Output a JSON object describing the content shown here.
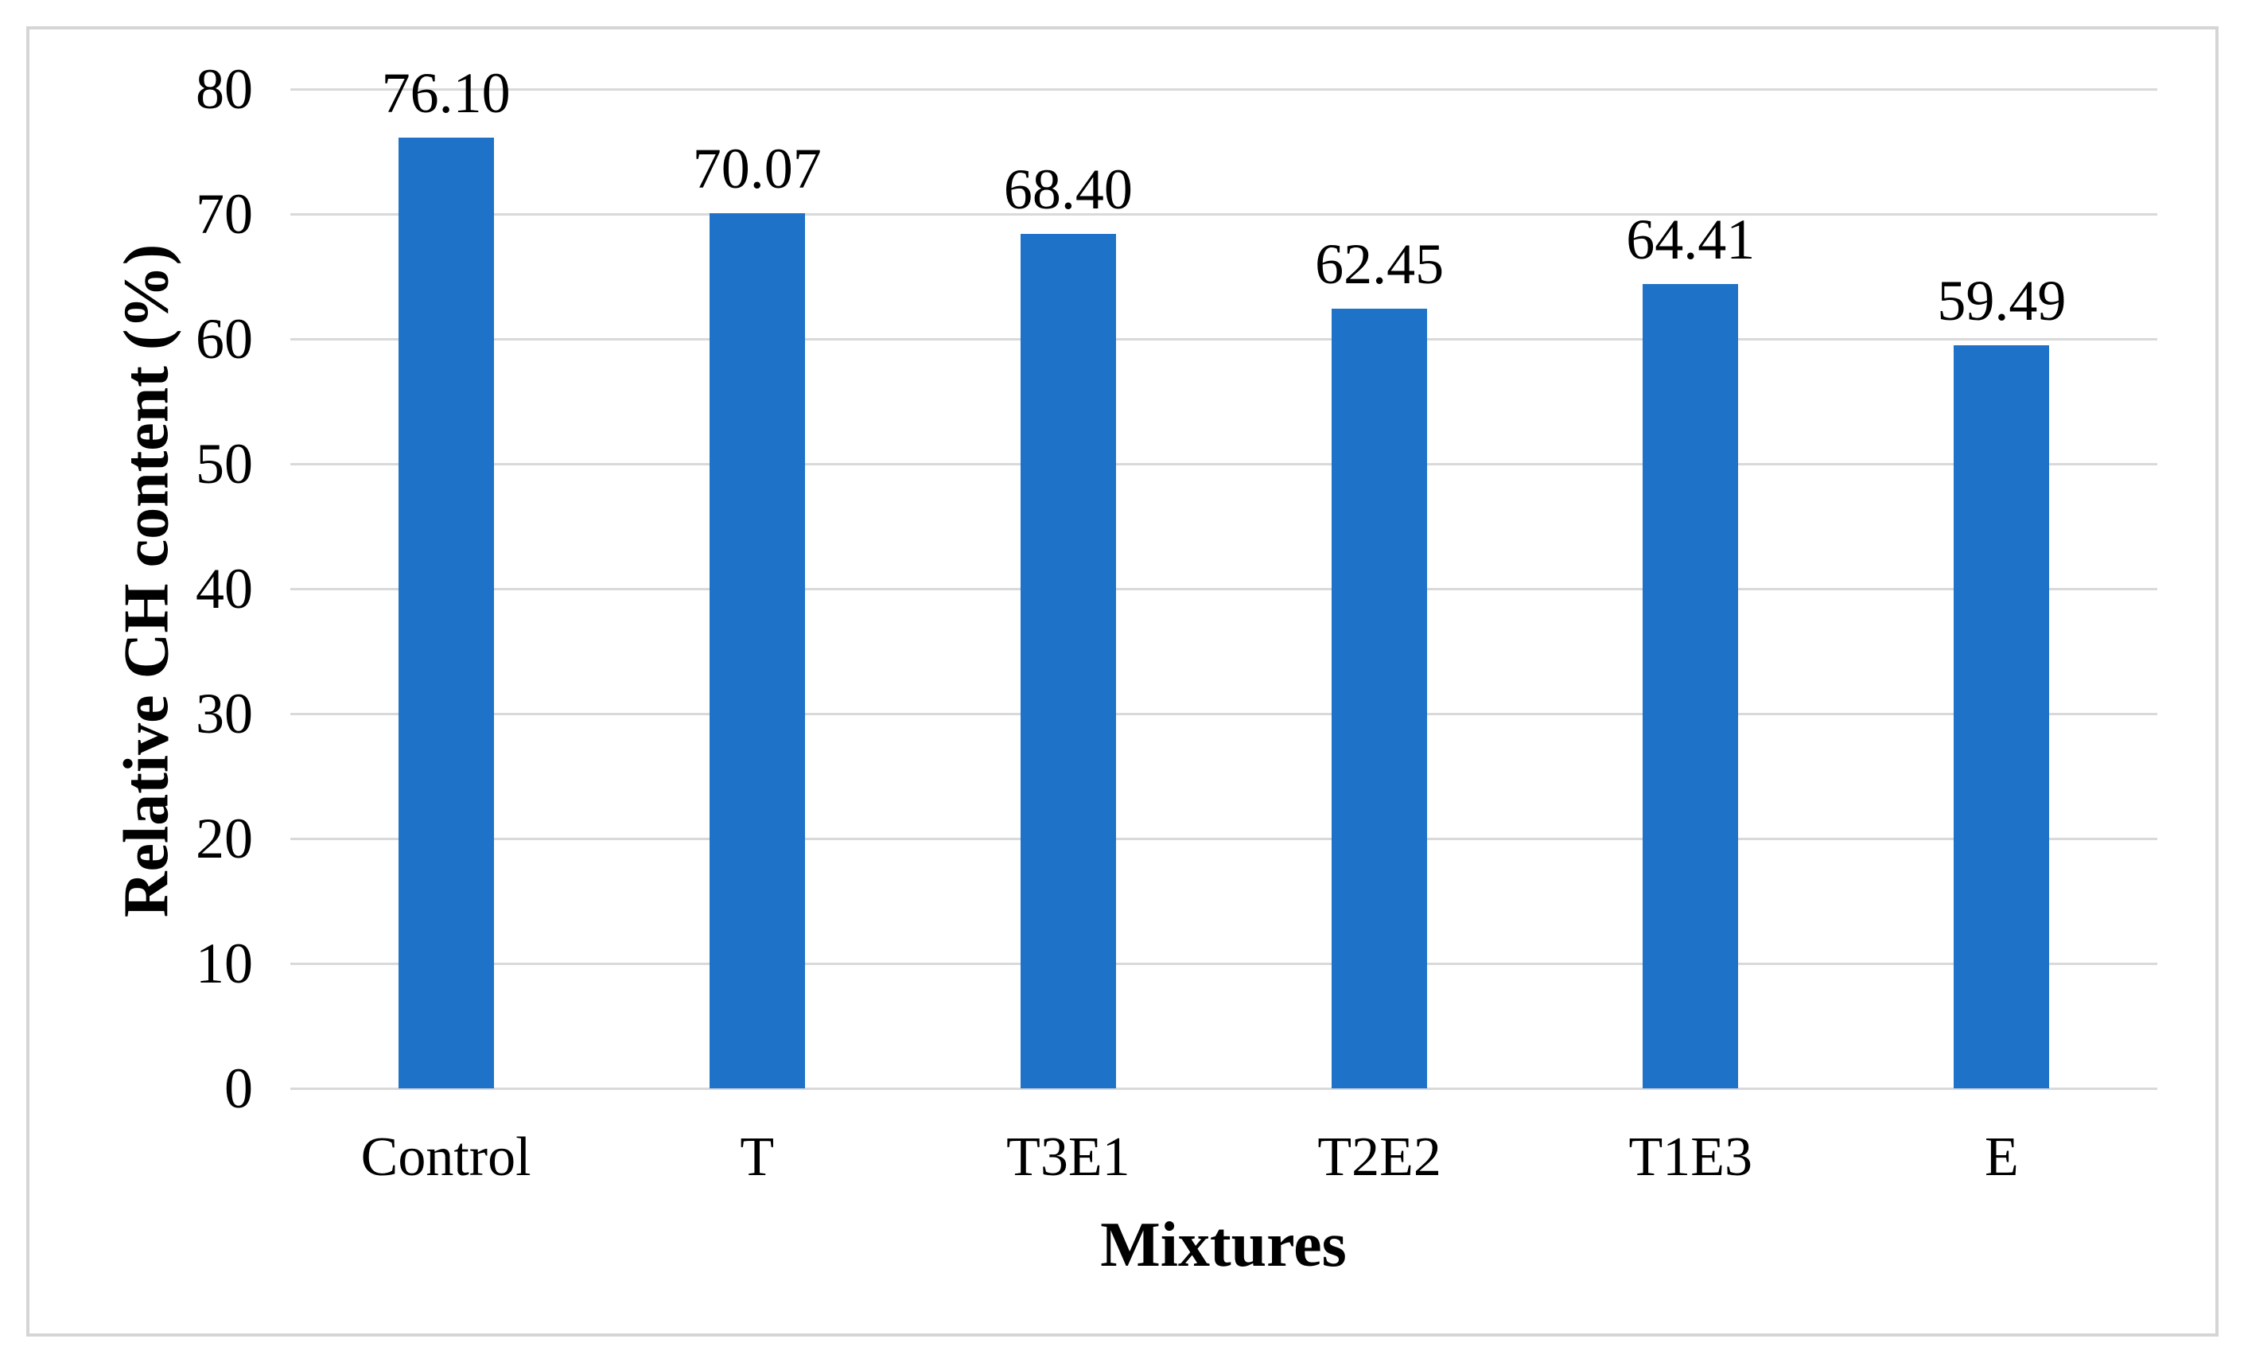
{
  "figure": {
    "background": "#FFFFFF",
    "frame_color": "#D5D5D5"
  },
  "chart_data": {
    "type": "bar",
    "title": "",
    "categories": [
      "Control",
      "T",
      "T3E1",
      "T2E2",
      "T1E3",
      "E"
    ],
    "values": [
      76.1,
      70.07,
      68.4,
      62.45,
      64.41,
      59.49
    ],
    "value_labels": [
      "76.10",
      "70.07",
      "68.40",
      "62.45",
      "64.41",
      "59.49"
    ],
    "xlabel": "Mixtures",
    "ylabel": "Relative CH content (%)",
    "ylim": [
      0,
      80
    ],
    "yticks": [
      0,
      10,
      20,
      30,
      40,
      50,
      60,
      70,
      80
    ],
    "grid": true,
    "legend": "none",
    "bar_color": "#1E73C8",
    "gridline_color": "#D9D9D9",
    "axis_line_color": "#D9D9D9",
    "label_color": "#000000"
  }
}
